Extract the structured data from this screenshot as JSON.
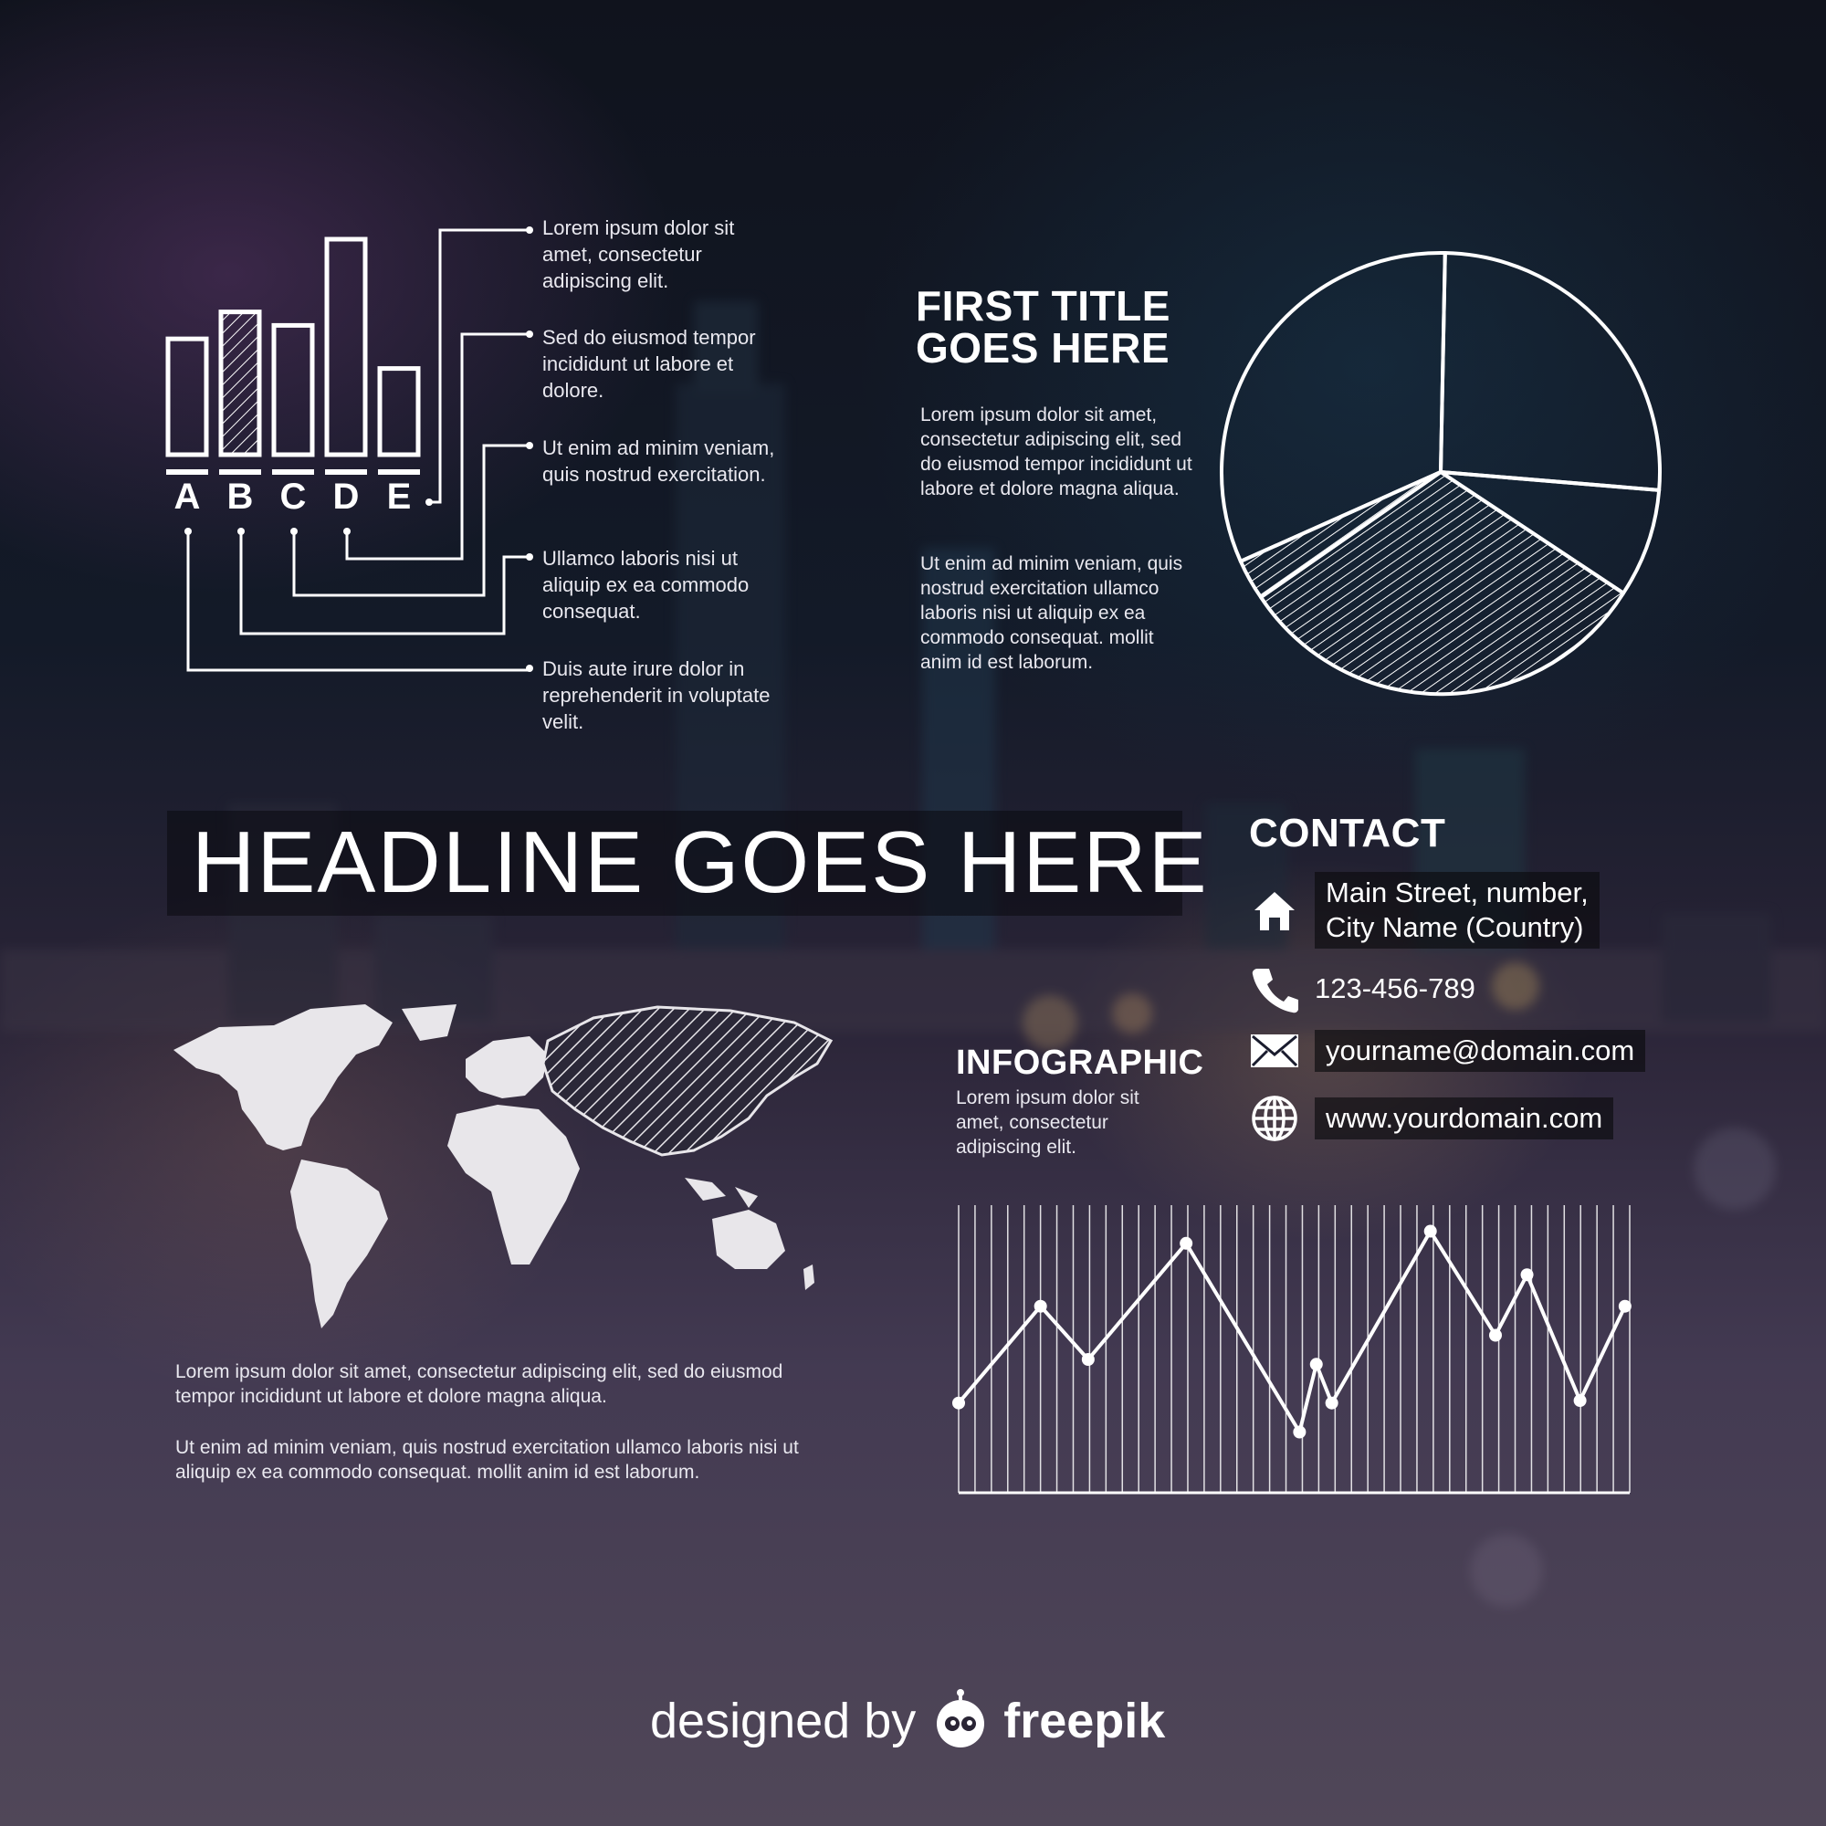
{
  "bar_panel": {
    "letters": [
      "A",
      "B",
      "C",
      "D",
      "E"
    ],
    "notes": [
      "Lorem ipsum dolor sit amet, consectetur adipiscing elit.",
      "Sed do eiusmod tempor incididunt ut labore et dolore.",
      "Ut enim ad minim veniam, quis nostrud exercitation.",
      "Ullamco laboris nisi ut aliquip ex ea commodo consequat.",
      "Duis aute irure dolor in reprehenderit in voluptate velit."
    ]
  },
  "first_section": {
    "title_line1": "FIRST TITLE",
    "title_line2": "GOES HERE",
    "para1": "Lorem ipsum dolor sit amet, consectetur adipiscing elit, sed do eiusmod tempor incididunt ut labore et dolore magna aliqua.",
    "para2": "Ut enim ad minim veniam, quis nostrud exercitation ullamco laboris nisi ut aliquip ex ea commodo consequat. mollit anim id est laborum."
  },
  "headline": "HEADLINE GOES HERE",
  "contact": {
    "title": "CONTACT",
    "address_line1": "Main Street, number,",
    "address_line2": "City Name (Country)",
    "phone": "123-456-789",
    "email": "yourname@domain.com",
    "website": "www.yourdomain.com",
    "icons": [
      "home-icon",
      "phone-icon",
      "mail-icon",
      "globe-icon"
    ]
  },
  "infographic": {
    "title": "INFOGRAPHIC",
    "text": "Lorem ipsum dolor sit amet, consectetur adipiscing elit."
  },
  "map_text": {
    "para1": "Lorem ipsum dolor sit amet, consectetur adipiscing elit, sed do eiusmod tempor incididunt ut labore et dolore magna aliqua.",
    "para2": "Ut enim ad minim veniam, quis nostrud exercitation ullamco laboris nisi ut aliquip ex ea commodo consequat. mollit anim id est laborum."
  },
  "credit": {
    "prefix": "designed by",
    "brand": "freepik"
  },
  "colors": {
    "line": "#ffffff",
    "map_fill": "#e8e6ea",
    "box": "rgba(10,10,14,0.6)"
  },
  "chart_data": [
    {
      "type": "bar",
      "categories": [
        "A",
        "B",
        "C",
        "D",
        "E"
      ],
      "values": [
        4.3,
        5.3,
        4.8,
        8.0,
        3.2
      ],
      "highlighted": "B"
    },
    {
      "type": "pie",
      "values": [
        26,
        8,
        31,
        3,
        32
      ],
      "hatched": [
        false,
        false,
        true,
        true,
        false
      ]
    },
    {
      "type": "line",
      "values": [
        22,
        62,
        40,
        88,
        10,
        38,
        22,
        93,
        50,
        75,
        23,
        62
      ]
    }
  ]
}
